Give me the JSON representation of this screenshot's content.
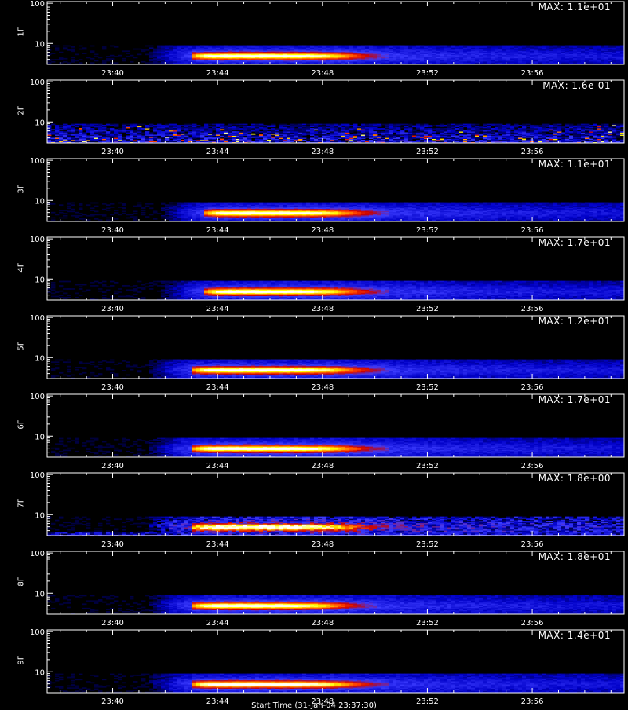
{
  "chart_data": {
    "type": "heatmap",
    "x_ticks": [
      "23:40",
      "23:44",
      "23:48",
      "23:52",
      "23:56"
    ],
    "x_range": [
      "23:37:30",
      "23:59:30"
    ],
    "y_scale": "log",
    "y_ticks": [
      10,
      100
    ],
    "y_range": [
      3,
      110
    ],
    "colormap": [
      "#000000",
      "#0000c8",
      "#3c3cff",
      "#c80000",
      "#ff4000",
      "#ffa000",
      "#ffff00",
      "#ffffff"
    ],
    "panels": [
      {
        "label": "1F",
        "max_text": "MAX: 1.1e+01",
        "max_value": 11,
        "kind": "event",
        "onset": "23:43:00",
        "core_end": "23:49:00"
      },
      {
        "label": "2F",
        "max_text": "MAX: 1.6e-01",
        "max_value": 0.16,
        "kind": "noise"
      },
      {
        "label": "3F",
        "max_text": "MAX: 1.1e+01",
        "max_value": 11,
        "kind": "event",
        "onset": "23:43:30",
        "core_end": "23:49:00"
      },
      {
        "label": "4F",
        "max_text": "MAX: 1.7e+01",
        "max_value": 17,
        "kind": "event",
        "onset": "23:43:30",
        "core_end": "23:49:00"
      },
      {
        "label": "5F",
        "max_text": "MAX: 1.2e+01",
        "max_value": 12,
        "kind": "event",
        "onset": "23:43:00",
        "core_end": "23:49:00"
      },
      {
        "label": "6F",
        "max_text": "MAX: 1.7e+01",
        "max_value": 17,
        "kind": "event",
        "onset": "23:43:00",
        "core_end": "23:49:00"
      },
      {
        "label": "7F",
        "max_text": "MAX: 1.8e+00",
        "max_value": 1.8,
        "kind": "event-noisy",
        "onset": "23:43:00",
        "core_end": "23:49:00"
      },
      {
        "label": "8F",
        "max_text": "MAX: 1.8e+01",
        "max_value": 18,
        "kind": "event",
        "onset": "23:43:00",
        "core_end": "23:48:30"
      },
      {
        "label": "9F",
        "max_text": "MAX: 1.4e+01",
        "max_value": 14,
        "kind": "event",
        "onset": "23:43:00",
        "core_end": "23:49:00"
      }
    ],
    "xlabel": "Start Time (31-Jan-04 23:37:30)"
  }
}
